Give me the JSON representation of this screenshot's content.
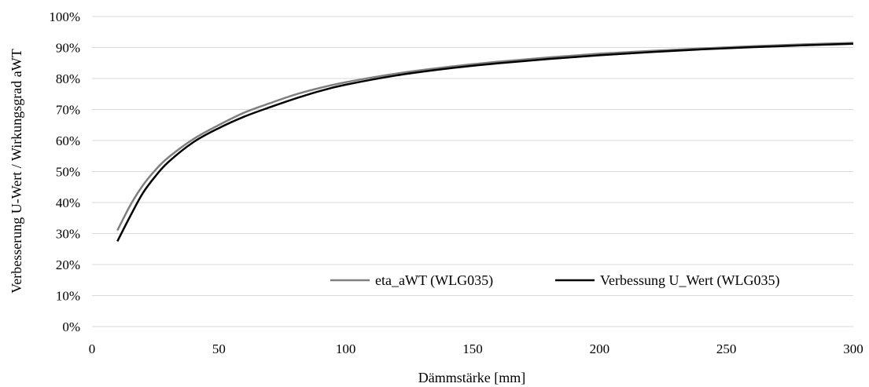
{
  "chart_data": {
    "type": "line",
    "title": "",
    "xlabel": "Dämmstärke [mm]",
    "ylabel": "Verbesserung U-Wert / Wirkungsgrad aWT",
    "xlim": [
      0,
      300
    ],
    "ylim": [
      0,
      100
    ],
    "x_ticks": [
      0,
      50,
      100,
      150,
      200,
      250,
      300
    ],
    "x_tick_labels": [
      "0",
      "50",
      "100",
      "150",
      "200",
      "250",
      "300"
    ],
    "y_ticks": [
      0,
      10,
      20,
      30,
      40,
      50,
      60,
      70,
      80,
      90,
      100
    ],
    "y_tick_labels": [
      "0%",
      "10%",
      "20%",
      "30%",
      "40%",
      "50%",
      "60%",
      "70%",
      "80%",
      "90%",
      "100%"
    ],
    "grid": true,
    "legend_position": "bottom-right, inside plot",
    "series": [
      {
        "name": "eta_aWT (WLG035)",
        "color": "#7f7f7f",
        "x": [
          10,
          15,
          20,
          25,
          30,
          40,
          50,
          60,
          70,
          80,
          90,
          100,
          120,
          140,
          160,
          180,
          200,
          220,
          240,
          260,
          280,
          300
        ],
        "y": [
          31,
          39,
          45.5,
          50.5,
          54.5,
          60.5,
          65,
          69,
          72,
          74.8,
          77,
          78.8,
          81.6,
          83.7,
          85.4,
          86.8,
          88,
          88.9,
          89.7,
          90.4,
          91,
          91.5
        ]
      },
      {
        "name": "Verbessung U_Wert (WLG035)",
        "color": "#000000",
        "x": [
          10,
          15,
          20,
          25,
          30,
          40,
          50,
          60,
          70,
          80,
          90,
          100,
          120,
          140,
          160,
          180,
          200,
          220,
          240,
          260,
          280,
          300
        ],
        "y": [
          27.5,
          35.5,
          43,
          48.5,
          53,
          59.5,
          64,
          67.7,
          70.7,
          73.5,
          76,
          78,
          81,
          83.2,
          84.9,
          86.3,
          87.5,
          88.5,
          89.4,
          90.1,
          90.7,
          91.2
        ]
      }
    ]
  }
}
